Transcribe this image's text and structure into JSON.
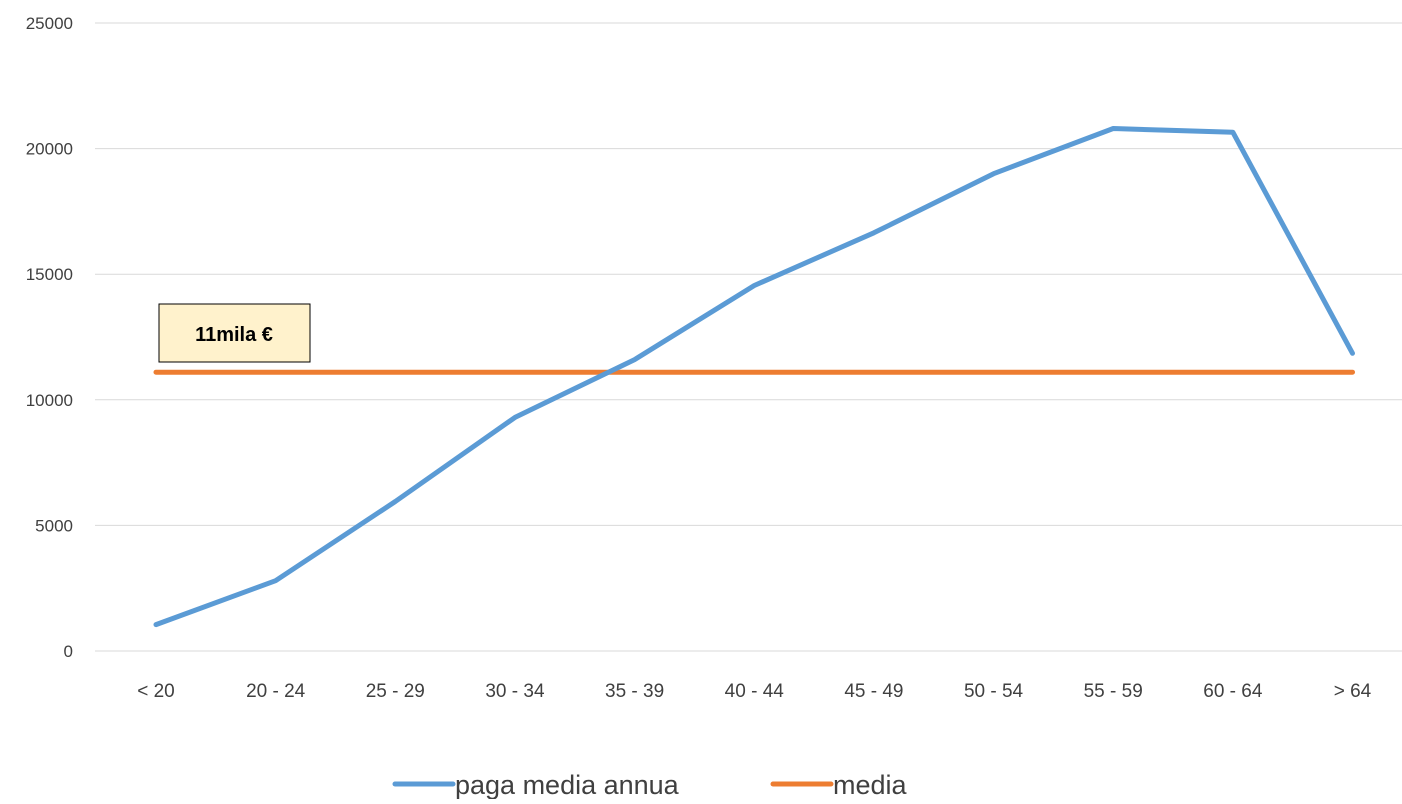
{
  "chart_data": {
    "type": "line",
    "title": "",
    "xlabel": "",
    "ylabel": "",
    "categories": [
      "< 20",
      "20  - 24",
      "25  - 29",
      "30  - 34",
      "35  - 39",
      "40  - 44",
      "45  - 49",
      "50  - 54",
      "55  - 59",
      "60  - 64",
      "> 64"
    ],
    "ylim": [
      0,
      25000
    ],
    "yticks": [
      "0",
      "5000",
      "10000",
      "15000",
      "20000",
      "25000"
    ],
    "grid": true,
    "legend_position": "bottom",
    "series": [
      {
        "name": "paga media annua",
        "color": "#5b9bd5",
        "values": [
          1050,
          2800,
          5950,
          9300,
          11600,
          14550,
          16650,
          19000,
          20800,
          20650,
          11850
        ]
      },
      {
        "name": "media",
        "color": "#ed7d31",
        "values": [
          11100,
          11100,
          11100,
          11100,
          11100,
          11100,
          11100,
          11100,
          11100,
          11100,
          11100
        ]
      }
    ],
    "annotations": [
      {
        "text": "11mila €",
        "background": "#fff2cc"
      }
    ]
  }
}
